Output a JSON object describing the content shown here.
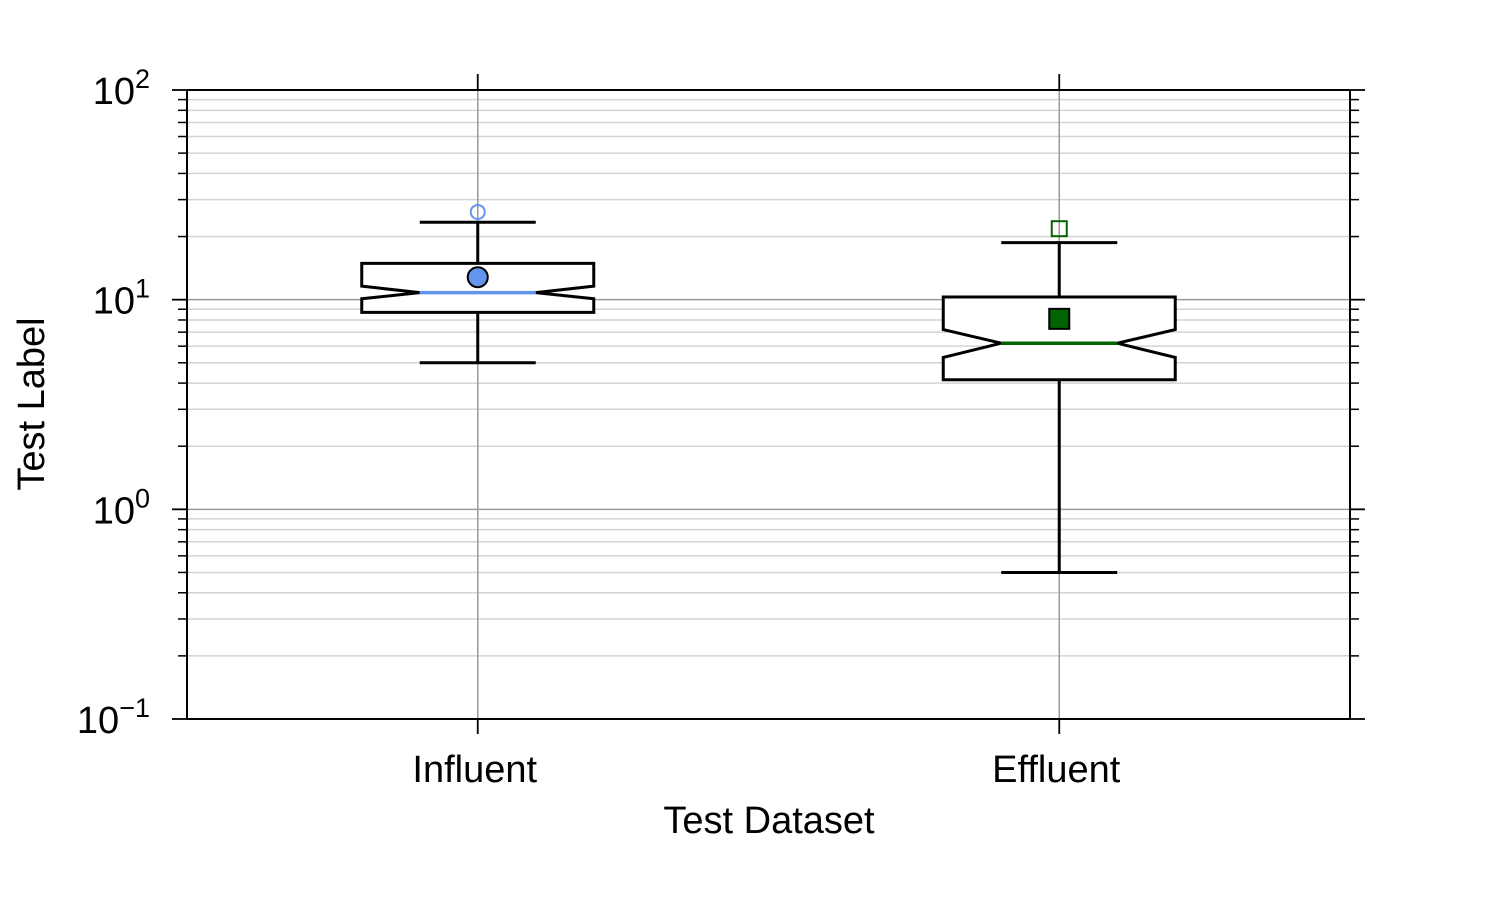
{
  "chart_data": {
    "type": "box",
    "title": "",
    "xlabel": "Test Dataset",
    "ylabel": "Test Label",
    "yscale": "log",
    "ylim": [
      0.1,
      100
    ],
    "grid": "y-major-minor, x-major",
    "categories": [
      "Influent",
      "Effluent"
    ],
    "ytick_labels": [
      {
        "base": "10",
        "exp": "−1",
        "value": 0.1
      },
      {
        "base": "10",
        "exp": "0",
        "value": 1
      },
      {
        "base": "10",
        "exp": "1",
        "value": 10
      },
      {
        "base": "10",
        "exp": "2",
        "value": 100
      }
    ],
    "series": [
      {
        "category": "Influent",
        "whisker_low": 5.0,
        "q1": 8.7,
        "notch_low": 10.1,
        "median": 10.8,
        "notch_high": 11.6,
        "q3": 14.9,
        "whisker_high": 23.4,
        "mean": 12.8,
        "outliers": [
          26.2
        ],
        "color": "#6495ED",
        "marker": "circle"
      },
      {
        "category": "Effluent",
        "whisker_low": 0.5,
        "q1": 4.15,
        "notch_low": 5.3,
        "median": 6.2,
        "notch_high": 7.2,
        "q3": 10.3,
        "whisker_high": 18.7,
        "mean": 8.1,
        "outliers": [
          21.8
        ],
        "color": "#006400",
        "marker": "square"
      }
    ]
  }
}
